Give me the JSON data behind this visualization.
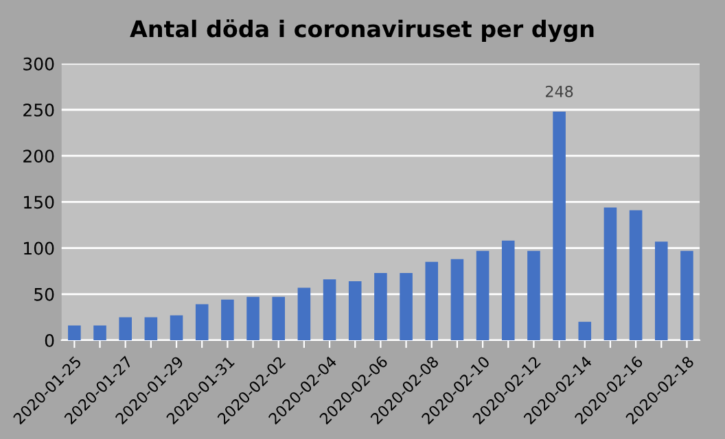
{
  "chart_data": {
    "type": "bar",
    "title": "Antal döda i coronaviruset per dygn",
    "categories": [
      "2020-01-25",
      null,
      "2020-01-27",
      null,
      "2020-01-29",
      null,
      "2020-01-31",
      null,
      "2020-02-02",
      null,
      "2020-02-04",
      null,
      "2020-02-06",
      null,
      "2020-02-08",
      null,
      "2020-02-10",
      null,
      "2020-02-12",
      null,
      "2020-02-14",
      null,
      "2020-02-16",
      null,
      "2020-02-18"
    ],
    "values": [
      16,
      16,
      25,
      25,
      27,
      39,
      44,
      47,
      47,
      57,
      66,
      64,
      73,
      73,
      85,
      88,
      97,
      108,
      97,
      248,
      20,
      144,
      141,
      107,
      97
    ],
    "value_labels": [
      null,
      null,
      null,
      null,
      null,
      null,
      null,
      null,
      null,
      null,
      null,
      null,
      null,
      null,
      null,
      null,
      null,
      null,
      null,
      "248",
      null,
      null,
      null,
      null,
      null
    ],
    "color": "#4472c4",
    "ylim": [
      0,
      300
    ],
    "yticks": [
      0,
      50,
      100,
      150,
      200,
      250,
      300
    ],
    "grid": "y",
    "legend": false
  }
}
